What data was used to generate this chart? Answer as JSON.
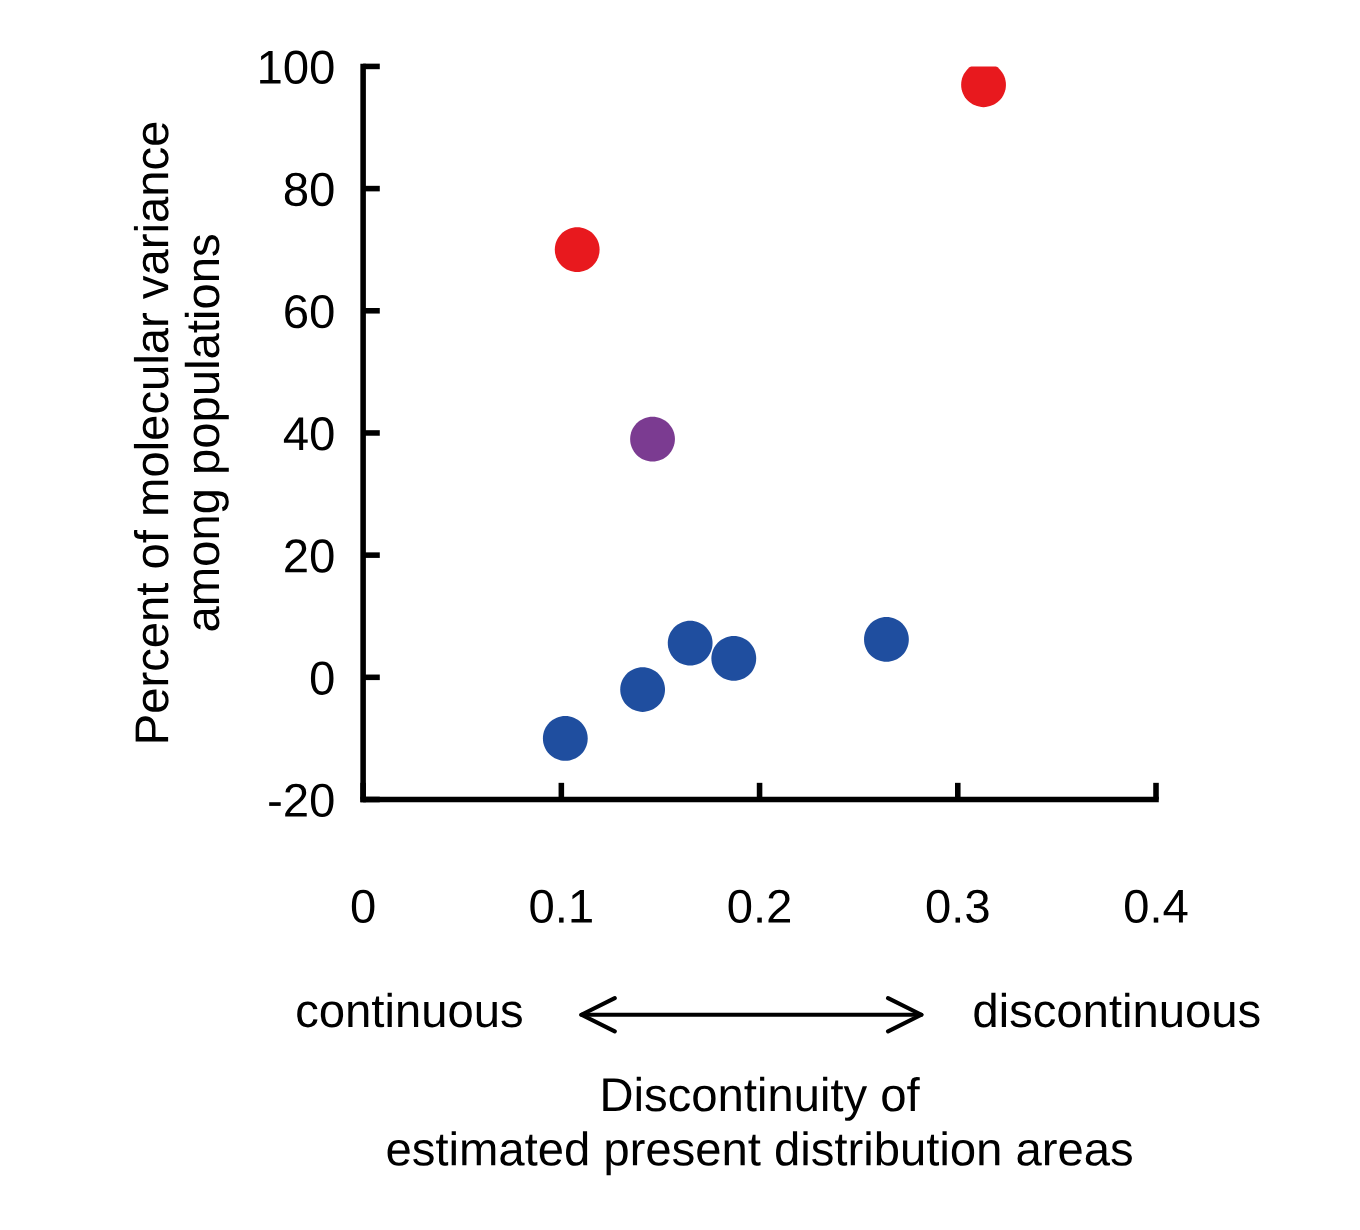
{
  "chart_data": {
    "type": "scatter",
    "xlabel": "Discontinuity of\nestimated present distribution areas",
    "ylabel": "Percent of molecular variance\namong populations",
    "series": [
      {
        "color": "#e8191e",
        "x": [
          0.108,
          0.313
        ],
        "values": [
          70,
          97
        ]
      },
      {
        "color": "#7b3b91",
        "x": [
          0.146
        ],
        "values": [
          39
        ]
      },
      {
        "color": "#1f4e9f",
        "x": [
          0.102,
          0.141,
          0.165,
          0.187,
          0.264
        ],
        "values": [
          -10,
          -2,
          5.6,
          3.1,
          6.2
        ]
      }
    ],
    "xlim": [
      0,
      0.4
    ],
    "xticks": [
      0,
      0.1,
      0.2,
      0.3,
      0.4
    ],
    "ylim": [
      -20,
      100
    ],
    "yticks": [
      -20,
      0,
      20,
      40,
      60,
      80,
      100
    ],
    "annotations": [
      "continuous",
      "discontinuous"
    ],
    "marker": "circle",
    "grid": false,
    "legend": false
  }
}
